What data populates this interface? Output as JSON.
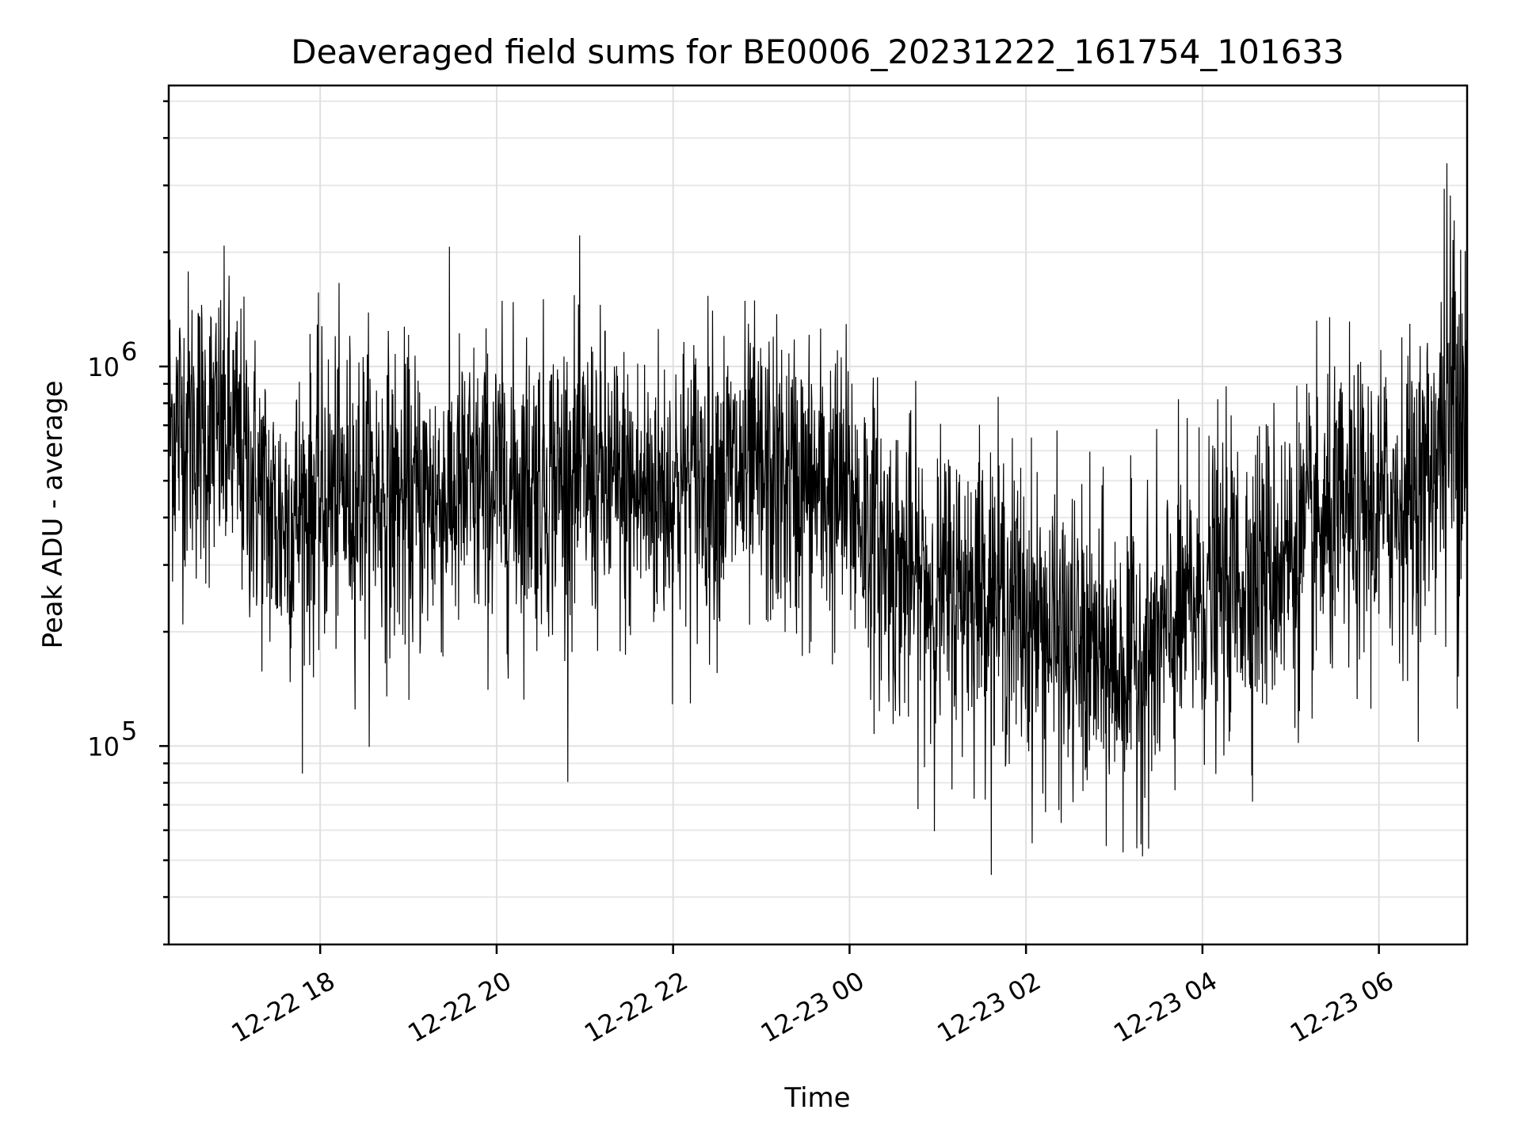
{
  "chart_data": {
    "type": "line",
    "title": "Deaveraged field sums for BE0006_20231222_161754_101633",
    "xlabel": "Time",
    "ylabel": "Peak ADU - average",
    "y_scale": "log",
    "ylim": [
      30000,
      5500000
    ],
    "xlim": [
      "2023-12-22 16:17",
      "2023-12-23 07:00"
    ],
    "grid": true,
    "x_tick_labels": [
      "12-22 18",
      "12-22 20",
      "12-22 22",
      "12-23 00",
      "12-23 02",
      "12-23 04",
      "12-23 06"
    ],
    "y_tick_labels": [
      {
        "value": 100000,
        "base": "10",
        "exp": "5"
      },
      {
        "value": 1000000,
        "base": "10",
        "exp": "6"
      }
    ],
    "series": [
      {
        "color": "#000000",
        "x": [
          "2023-12-22 16:30",
          "2023-12-22 17:00",
          "2023-12-22 17:30",
          "2023-12-22 18:00",
          "2023-12-22 18:30",
          "2023-12-22 19:00",
          "2023-12-22 19:30",
          "2023-12-22 20:00",
          "2023-12-22 20:30",
          "2023-12-22 21:00",
          "2023-12-22 21:30",
          "2023-12-22 22:00",
          "2023-12-22 22:30",
          "2023-12-22 23:00",
          "2023-12-22 23:30",
          "2023-12-23 00:00",
          "2023-12-23 00:30",
          "2023-12-23 01:00",
          "2023-12-23 01:30",
          "2023-12-23 02:00",
          "2023-12-23 02:30",
          "2023-12-23 03:00",
          "2023-12-23 03:30",
          "2023-12-23 04:00",
          "2023-12-23 04:30",
          "2023-12-23 05:00",
          "2023-12-23 05:30",
          "2023-12-23 06:00",
          "2023-12-23 06:30",
          "2023-12-23 06:55"
        ],
        "y": [
          700000,
          650000,
          380000,
          450000,
          480000,
          430000,
          460000,
          480000,
          500000,
          520000,
          450000,
          480000,
          520000,
          500000,
          480000,
          450000,
          300000,
          250000,
          270000,
          220000,
          180000,
          160000,
          180000,
          250000,
          280000,
          320000,
          380000,
          420000,
          480000,
          900000
        ]
      }
    ]
  }
}
